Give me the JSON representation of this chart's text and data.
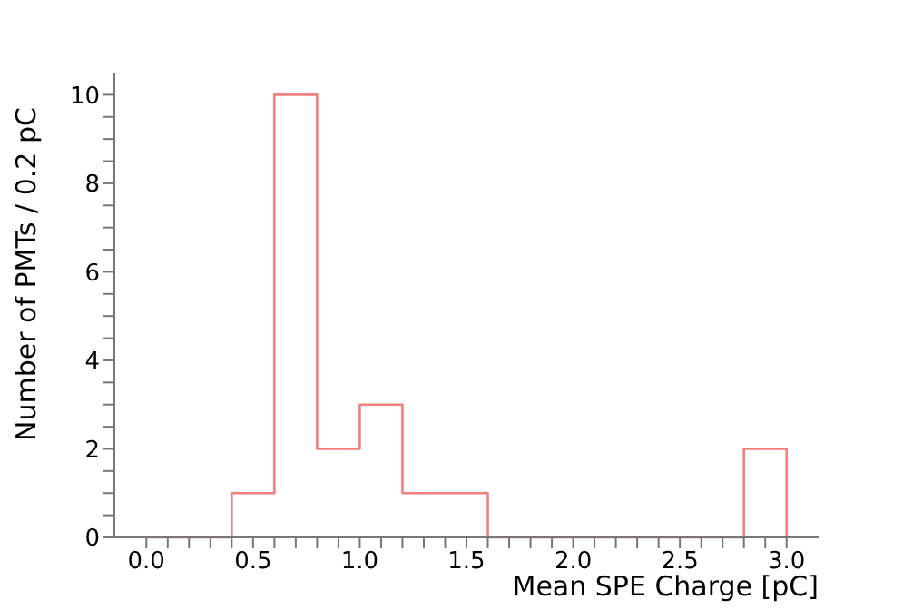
{
  "chart_data": {
    "type": "histogram",
    "xlabel": "Mean SPE Charge [pC]",
    "ylabel": "Number of PMTs / 0.2 pC",
    "color": "#f08080",
    "bins": [
      0.0,
      0.2,
      0.4,
      0.6,
      0.8,
      1.0,
      1.2,
      1.4,
      1.6,
      1.8,
      2.0,
      2.2,
      2.4,
      2.6,
      2.8,
      3.0
    ],
    "values": [
      0,
      0,
      1,
      10,
      2,
      3,
      1,
      1,
      0,
      0,
      0,
      0,
      0,
      0,
      2
    ],
    "xlim": [
      -0.15,
      3.15
    ],
    "xticks": [
      {
        "value": 0,
        "label": "0.0"
      },
      {
        "value": 0.1,
        "label": null
      },
      {
        "value": 0.2,
        "label": null
      },
      {
        "value": 0.3,
        "label": null
      },
      {
        "value": 0.4,
        "label": null
      },
      0.5,
      {
        "value": 0.6,
        "label": null
      },
      {
        "value": 0.7,
        "label": null
      },
      {
        "value": 0.8,
        "label": null
      },
      {
        "value": 0.9,
        "label": null
      },
      {
        "value": 1,
        "label": "1.0"
      },
      {
        "value": 1.1,
        "label": null
      },
      {
        "value": 1.2,
        "label": null
      },
      {
        "value": 1.3,
        "label": null
      },
      {
        "value": 1.4,
        "label": null
      },
      1.5,
      {
        "value": 1.6,
        "label": null
      },
      {
        "value": 1.7,
        "label": null
      },
      {
        "value": 1.8,
        "label": null
      },
      {
        "value": 1.9,
        "label": null
      },
      {
        "value": 2,
        "label": "2.0"
      },
      {
        "value": 2.1,
        "label": null
      },
      {
        "value": 2.2,
        "label": null
      },
      {
        "value": 2.3,
        "label": null
      },
      {
        "value": 2.4,
        "label": null
      },
      2.5,
      {
        "value": 2.6,
        "label": null
      },
      {
        "value": 2.7,
        "label": null
      },
      {
        "value": 2.8,
        "label": null
      },
      {
        "value": 2.9,
        "label": null
      },
      {
        "value": 3,
        "label": "3.0"
      }
    ],
    "ylim": [
      0,
      10.5
    ],
    "yticks": [
      0,
      {
        "value": 0.5,
        "label": null
      },
      {
        "value": 1,
        "label": null
      },
      {
        "value": 1.5,
        "label": null
      },
      2,
      {
        "value": 2.5,
        "label": null
      },
      {
        "value": 3,
        "label": null
      },
      {
        "value": 3.5,
        "label": null
      },
      4,
      {
        "value": 4.5,
        "label": null
      },
      {
        "value": 5,
        "label": null
      },
      {
        "value": 5.5,
        "label": null
      },
      6,
      {
        "value": 6.5,
        "label": null
      },
      {
        "value": 7,
        "label": null
      },
      {
        "value": 7.5,
        "label": null
      },
      8,
      {
        "value": 8.5,
        "label": null
      },
      {
        "value": 9,
        "label": null
      },
      {
        "value": 9.5,
        "label": null
      },
      10
    ],
    "grid": false,
    "legend": false
  }
}
